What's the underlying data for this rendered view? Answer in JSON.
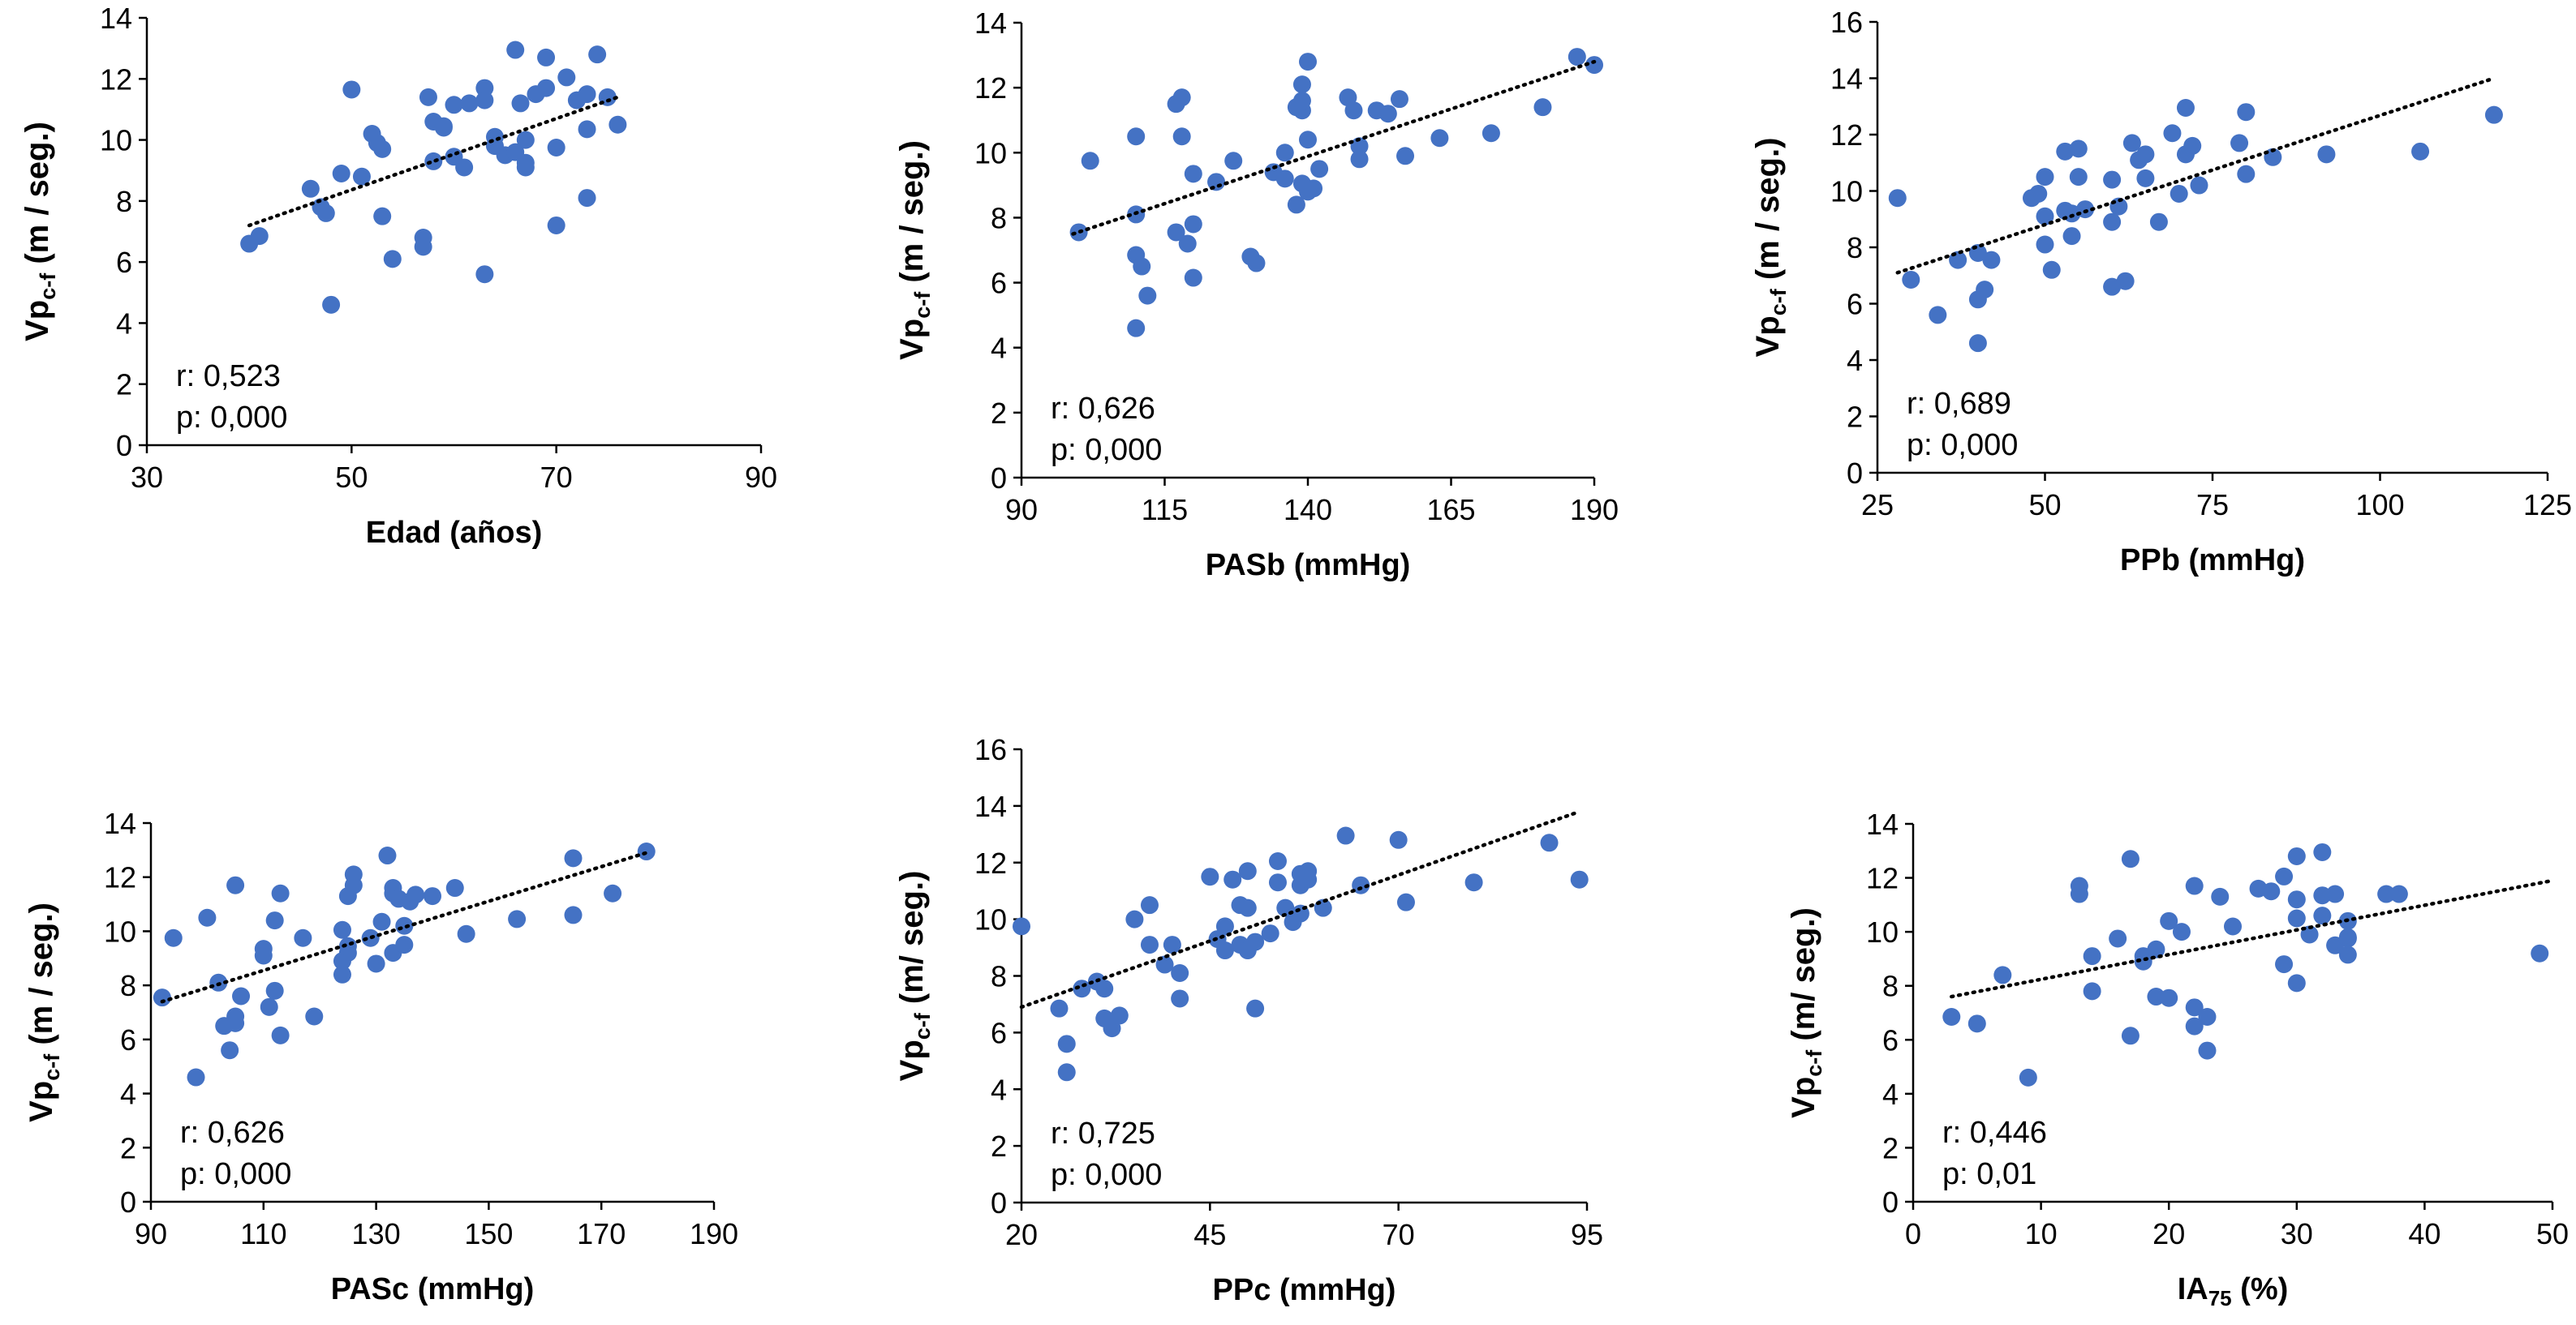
{
  "style": {
    "point_color": "#4472C4",
    "axis_color": "#000000",
    "trend_color": "#000000"
  },
  "chart_data": [
    {
      "type": "scatter",
      "xlabel": "Edad (años)",
      "ylabel_main": "Vp",
      "ylabel_sub": "c-f",
      "ylabel_tail": "  (m / seg.)",
      "xlim": [
        30,
        90
      ],
      "xticks": [
        30,
        50,
        70,
        90
      ],
      "ylim": [
        0,
        14
      ],
      "yticks": [
        0,
        2,
        4,
        6,
        8,
        10,
        12,
        14
      ],
      "stat_r": "r: 0,523",
      "stat_p": "p: 0,000",
      "trendline": [
        [
          40,
          7.2
        ],
        [
          76,
          11.4
        ]
      ],
      "points": [
        [
          40,
          6.6
        ],
        [
          41,
          6.85
        ],
        [
          46,
          8.4
        ],
        [
          47,
          7.8
        ],
        [
          47.5,
          7.6
        ],
        [
          48,
          4.6
        ],
        [
          49,
          8.9
        ],
        [
          50,
          11.65
        ],
        [
          51,
          8.8
        ],
        [
          52,
          10.2
        ],
        [
          52.5,
          9.9
        ],
        [
          53,
          9.7
        ],
        [
          53,
          7.5
        ],
        [
          54,
          6.1
        ],
        [
          57,
          6.5
        ],
        [
          57,
          6.8
        ],
        [
          57.5,
          11.4
        ],
        [
          58,
          10.6
        ],
        [
          58,
          9.3
        ],
        [
          59,
          10.45
        ],
        [
          59,
          10.4
        ],
        [
          60,
          9.45
        ],
        [
          60,
          11.15
        ],
        [
          61,
          9.1
        ],
        [
          61.5,
          11.2
        ],
        [
          63,
          11.7
        ],
        [
          63,
          11.3
        ],
        [
          63,
          5.6
        ],
        [
          64,
          9.8
        ],
        [
          64,
          10.1
        ],
        [
          65,
          9.5
        ],
        [
          66,
          12.95
        ],
        [
          66,
          9.6
        ],
        [
          66.5,
          11.2
        ],
        [
          67,
          9.1
        ],
        [
          67,
          9.25
        ],
        [
          67,
          10.0
        ],
        [
          68,
          11.5
        ],
        [
          69,
          12.7
        ],
        [
          69,
          11.7
        ],
        [
          70,
          7.2
        ],
        [
          70,
          9.75
        ],
        [
          71,
          12.05
        ],
        [
          72,
          11.3
        ],
        [
          73,
          11.5
        ],
        [
          73,
          10.35
        ],
        [
          73,
          8.1
        ],
        [
          74,
          12.8
        ],
        [
          75,
          11.4
        ],
        [
          76,
          10.5
        ]
      ]
    },
    {
      "type": "scatter",
      "xlabel": "PASb (mmHg)",
      "ylabel_main": "Vp",
      "ylabel_sub": "c-f",
      "ylabel_tail": " (m / seg.)",
      "xlim": [
        90,
        190
      ],
      "xticks": [
        90,
        115,
        140,
        165,
        190
      ],
      "ylim": [
        0,
        14
      ],
      "yticks": [
        0,
        2,
        4,
        6,
        8,
        10,
        12,
        14
      ],
      "stat_r": "r: 0,626",
      "stat_p": "p: 0,000",
      "trendline": [
        [
          99,
          7.5
        ],
        [
          190,
          12.8
        ]
      ],
      "points": [
        [
          100,
          7.55
        ],
        [
          102,
          9.75
        ],
        [
          110,
          10.5
        ],
        [
          110,
          8.1
        ],
        [
          110,
          6.85
        ],
        [
          110,
          4.6
        ],
        [
          111,
          6.5
        ],
        [
          112,
          5.6
        ],
        [
          117,
          7.55
        ],
        [
          117,
          11.5
        ],
        [
          118,
          11.7
        ],
        [
          118,
          10.5
        ],
        [
          119,
          7.2
        ],
        [
          120,
          9.35
        ],
        [
          120,
          7.8
        ],
        [
          120,
          6.15
        ],
        [
          124,
          9.1
        ],
        [
          127,
          9.75
        ],
        [
          130,
          6.8
        ],
        [
          131,
          6.6
        ],
        [
          134,
          9.4
        ],
        [
          136,
          10.0
        ],
        [
          136,
          9.2
        ],
        [
          138,
          8.4
        ],
        [
          138,
          11.4
        ],
        [
          139,
          11.3
        ],
        [
          139,
          12.1
        ],
        [
          139,
          9.05
        ],
        [
          139,
          11.6
        ],
        [
          140,
          12.8
        ],
        [
          140,
          10.4
        ],
        [
          140,
          8.8
        ],
        [
          141,
          8.9
        ],
        [
          142,
          9.5
        ],
        [
          147,
          11.7
        ],
        [
          148,
          11.3
        ],
        [
          149,
          10.2
        ],
        [
          149,
          9.8
        ],
        [
          152,
          11.3
        ],
        [
          154,
          11.2
        ],
        [
          156,
          11.65
        ],
        [
          157,
          9.9
        ],
        [
          163,
          10.45
        ],
        [
          172,
          10.6
        ],
        [
          181,
          11.4
        ],
        [
          187,
          12.95
        ],
        [
          190,
          12.7
        ]
      ]
    },
    {
      "type": "scatter",
      "xlabel": "PPb (mmHg)",
      "ylabel_main": "Vp",
      "ylabel_sub": "c-f",
      "ylabel_tail": "  (m / seg.)",
      "xlim": [
        25,
        125
      ],
      "xticks": [
        25,
        50,
        75,
        100,
        125
      ],
      "ylim": [
        0,
        16
      ],
      "yticks": [
        0,
        2,
        4,
        6,
        8,
        10,
        12,
        14,
        16
      ],
      "stat_r": "r: 0,689",
      "stat_p": "p: 0,000",
      "trendline": [
        [
          28,
          7.1
        ],
        [
          117,
          14.0
        ]
      ],
      "points": [
        [
          28,
          9.75
        ],
        [
          30,
          6.85
        ],
        [
          34,
          5.6
        ],
        [
          37,
          7.55
        ],
        [
          40,
          7.8
        ],
        [
          40,
          6.15
        ],
        [
          40,
          4.6
        ],
        [
          41,
          6.5
        ],
        [
          42,
          7.55
        ],
        [
          48,
          9.75
        ],
        [
          49,
          9.9
        ],
        [
          50,
          10.5
        ],
        [
          50,
          9.1
        ],
        [
          50,
          8.1
        ],
        [
          51,
          7.2
        ],
        [
          53,
          11.4
        ],
        [
          53,
          9.3
        ],
        [
          54,
          9.2
        ],
        [
          54,
          8.4
        ],
        [
          55,
          11.5
        ],
        [
          55,
          10.5
        ],
        [
          56,
          9.35
        ],
        [
          60,
          10.4
        ],
        [
          60,
          8.9
        ],
        [
          60,
          6.6
        ],
        [
          61,
          9.45
        ],
        [
          62,
          6.8
        ],
        [
          63,
          11.7
        ],
        [
          64,
          11.1
        ],
        [
          65,
          11.3
        ],
        [
          65,
          10.45
        ],
        [
          67,
          8.9
        ],
        [
          69,
          12.05
        ],
        [
          70,
          9.9
        ],
        [
          71,
          12.95
        ],
        [
          71,
          11.3
        ],
        [
          72,
          11.6
        ],
        [
          73,
          10.2
        ],
        [
          79,
          11.7
        ],
        [
          80,
          12.8
        ],
        [
          80,
          10.6
        ],
        [
          84,
          11.2
        ],
        [
          92,
          11.3
        ],
        [
          106,
          11.4
        ],
        [
          117,
          12.7
        ]
      ]
    },
    {
      "type": "scatter",
      "xlabel": "PASc (mmHg)",
      "ylabel_main": "Vp",
      "ylabel_sub": "c-f",
      "ylabel_tail": " (m / seg.)",
      "xlim": [
        90,
        190
      ],
      "xticks": [
        90,
        110,
        130,
        150,
        170,
        190
      ],
      "ylim": [
        0,
        14
      ],
      "yticks": [
        0,
        2,
        4,
        6,
        8,
        10,
        12,
        14
      ],
      "stat_r": "r: 0,626",
      "stat_p": "p: 0,000",
      "trendline": [
        [
          92,
          7.4
        ],
        [
          178,
          12.9
        ]
      ],
      "points": [
        [
          92,
          7.55
        ],
        [
          94,
          9.75
        ],
        [
          98,
          4.6
        ],
        [
          100,
          10.5
        ],
        [
          102,
          8.1
        ],
        [
          103,
          6.5
        ],
        [
          104,
          5.6
        ],
        [
          105,
          11.7
        ],
        [
          105,
          6.85
        ],
        [
          105,
          6.6
        ],
        [
          106,
          7.6
        ],
        [
          110,
          9.35
        ],
        [
          110,
          9.1
        ],
        [
          111,
          7.2
        ],
        [
          112,
          10.4
        ],
        [
          112,
          7.8
        ],
        [
          113,
          6.15
        ],
        [
          113,
          11.4
        ],
        [
          117,
          9.75
        ],
        [
          119,
          6.85
        ],
        [
          124,
          10.05
        ],
        [
          124,
          8.4
        ],
        [
          124,
          8.9
        ],
        [
          125,
          11.3
        ],
        [
          125,
          9.2
        ],
        [
          125,
          9.45
        ],
        [
          126,
          12.1
        ],
        [
          126,
          11.7
        ],
        [
          129,
          9.75
        ],
        [
          130,
          8.8
        ],
        [
          131,
          10.35
        ],
        [
          132,
          12.8
        ],
        [
          133,
          9.2
        ],
        [
          133,
          11.4
        ],
        [
          133,
          11.6
        ],
        [
          134,
          11.2
        ],
        [
          135,
          10.2
        ],
        [
          135,
          9.5
        ],
        [
          136,
          11.1
        ],
        [
          137,
          11.35
        ],
        [
          140,
          11.3
        ],
        [
          144,
          11.6
        ],
        [
          146,
          9.9
        ],
        [
          155,
          10.45
        ],
        [
          165,
          12.7
        ],
        [
          165,
          10.6
        ],
        [
          172,
          11.4
        ],
        [
          178,
          12.95
        ]
      ]
    },
    {
      "type": "scatter",
      "xlabel": "PPc (mmHg)",
      "ylabel_main": "Vp",
      "ylabel_sub": "c-f",
      "ylabel_tail": "  (m/ seg.)",
      "xlim": [
        20,
        95
      ],
      "xticks": [
        20,
        45,
        70,
        95
      ],
      "ylim": [
        0,
        16
      ],
      "yticks": [
        0,
        2,
        4,
        6,
        8,
        10,
        12,
        14,
        16
      ],
      "stat_r": "r: 0,725",
      "stat_p": "p: 0,000",
      "trendline": [
        [
          20,
          6.9
        ],
        [
          94,
          13.8
        ]
      ],
      "points": [
        [
          20,
          9.75
        ],
        [
          25,
          6.85
        ],
        [
          26,
          5.6
        ],
        [
          26,
          4.6
        ],
        [
          28,
          7.55
        ],
        [
          30,
          7.8
        ],
        [
          31,
          7.55
        ],
        [
          31,
          6.5
        ],
        [
          32,
          6.15
        ],
        [
          33,
          6.6
        ],
        [
          35,
          10.0
        ],
        [
          37,
          10.5
        ],
        [
          37,
          9.1
        ],
        [
          39,
          8.4
        ],
        [
          40,
          9.1
        ],
        [
          41,
          8.1
        ],
        [
          41,
          7.2
        ],
        [
          45,
          11.5
        ],
        [
          46,
          9.3
        ],
        [
          47,
          8.9
        ],
        [
          47,
          9.75
        ],
        [
          48,
          11.4
        ],
        [
          49,
          10.5
        ],
        [
          49,
          9.1
        ],
        [
          50,
          10.4
        ],
        [
          50,
          8.9
        ],
        [
          50,
          11.7
        ],
        [
          51,
          9.2
        ],
        [
          51,
          6.85
        ],
        [
          53,
          9.5
        ],
        [
          54,
          12.05
        ],
        [
          54,
          11.3
        ],
        [
          55,
          10.4
        ],
        [
          56,
          9.9
        ],
        [
          57,
          10.2
        ],
        [
          57,
          11.6
        ],
        [
          57,
          11.2
        ],
        [
          58,
          11.4
        ],
        [
          58,
          11.7
        ],
        [
          60,
          10.4
        ],
        [
          63,
          12.95
        ],
        [
          65,
          11.2
        ],
        [
          70,
          12.8
        ],
        [
          71,
          10.6
        ],
        [
          80,
          11.3
        ],
        [
          90,
          12.7
        ],
        [
          94,
          11.4
        ]
      ]
    },
    {
      "type": "scatter",
      "xlabel": "IA",
      "xlabel_sub": "75",
      "xlabel_tail": " (%)",
      "ylabel_main": "Vp",
      "ylabel_sub": "c-f",
      "ylabel_tail": "  (m/ seg.)",
      "xlim": [
        0,
        50
      ],
      "xticks": [
        0,
        10,
        20,
        30,
        40,
        50
      ],
      "ylim": [
        0,
        14
      ],
      "yticks": [
        0,
        2,
        4,
        6,
        8,
        10,
        12,
        14
      ],
      "stat_r": "r: 0,446",
      "stat_p": "p: 0,01",
      "trendline": [
        [
          3,
          7.6
        ],
        [
          50,
          11.9
        ]
      ],
      "points": [
        [
          3,
          6.85
        ],
        [
          5,
          6.6
        ],
        [
          7,
          8.4
        ],
        [
          9,
          4.6
        ],
        [
          13,
          11.7
        ],
        [
          13,
          11.4
        ],
        [
          14,
          9.1
        ],
        [
          14,
          7.8
        ],
        [
          16,
          9.75
        ],
        [
          17,
          12.7
        ],
        [
          17,
          6.15
        ],
        [
          18,
          8.9
        ],
        [
          18,
          9.1
        ],
        [
          19,
          7.6
        ],
        [
          19,
          9.35
        ],
        [
          20,
          7.55
        ],
        [
          20,
          10.4
        ],
        [
          21,
          10.0
        ],
        [
          22,
          11.7
        ],
        [
          22,
          7.2
        ],
        [
          22,
          6.5
        ],
        [
          23,
          5.6
        ],
        [
          23,
          6.85
        ],
        [
          24,
          11.3
        ],
        [
          25,
          10.2
        ],
        [
          27,
          11.6
        ],
        [
          28,
          11.5
        ],
        [
          29,
          12.05
        ],
        [
          29,
          8.8
        ],
        [
          30,
          12.8
        ],
        [
          30,
          11.2
        ],
        [
          30,
          10.5
        ],
        [
          30,
          8.1
        ],
        [
          31,
          9.9
        ],
        [
          32,
          11.35
        ],
        [
          32,
          10.6
        ],
        [
          32,
          12.95
        ],
        [
          33,
          11.4
        ],
        [
          33,
          9.5
        ],
        [
          34,
          10.4
        ],
        [
          34,
          9.75
        ],
        [
          34,
          9.15
        ],
        [
          34,
          9.8
        ],
        [
          37,
          11.4
        ],
        [
          38,
          11.4
        ],
        [
          49,
          9.2
        ]
      ]
    }
  ]
}
